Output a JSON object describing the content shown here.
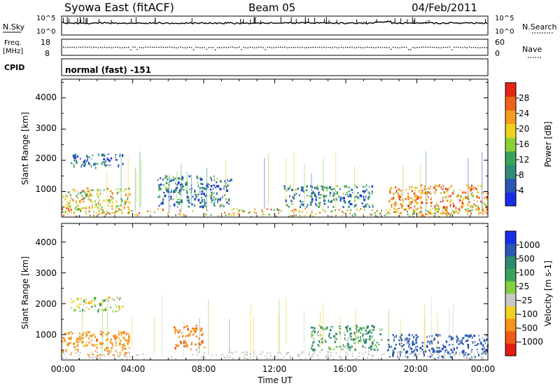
{
  "header": {
    "station": "Syowa East (fitACF)",
    "beam": "Beam 05",
    "date": "04/Feb/2011"
  },
  "top_panels": {
    "nsky_label": "N.Sky",
    "nsky_top_tick": "10^5",
    "nsky_bottom_tick": "10^0",
    "nsearch_label": "N.Search",
    "nsearch_top_tick": "10^5",
    "nsearch_bottom_tick": "10^0",
    "freq_label_1": "Freq.",
    "freq_label_2": "[MHz]",
    "freq_top_tick": "18",
    "freq_bottom_tick": "8",
    "nave_label": "Nave",
    "nave_top_tick": "60",
    "nave_bottom_tick": "0",
    "cpid_label": "CPID",
    "cpid_value": "normal (fast) -151"
  },
  "axes": {
    "ylabel": "Slant Range [km]",
    "xlabel": "Time UT",
    "y_ticks": [
      "1000",
      "2000",
      "3000",
      "4000"
    ],
    "x_ticks": [
      "00:00",
      "04:00",
      "08:00",
      "12:00",
      "16:00",
      "20:00",
      "00:00"
    ]
  },
  "power_scale": {
    "label": "Power [dB]",
    "ticks": [
      "4",
      "8",
      "12",
      "16",
      "20",
      "24",
      "28"
    ],
    "colors": [
      "#1a2ee8",
      "#2a56b4",
      "#2f8a7a",
      "#3aa35a",
      "#8ccf35",
      "#f0d020",
      "#f59a1c",
      "#f0621a",
      "#e32416"
    ]
  },
  "velocity_scale": {
    "label": "Velocity [m s-1]",
    "ticks": [
      "1000",
      "500",
      "100",
      "25",
      "-25",
      "-100",
      "-500",
      "-1000"
    ],
    "colors": [
      "#1a2ee8",
      "#2a58b2",
      "#2f8a6e",
      "#3aa35a",
      "#82d040",
      "#c8c8c8",
      "#f0d020",
      "#f5951c",
      "#f05a18",
      "#e31c12"
    ]
  },
  "chart_data": [
    {
      "type": "heatmap",
      "title": "Power",
      "xlabel": "Time UT",
      "ylabel": "Slant Range [km]",
      "xlim": [
        0,
        24
      ],
      "ylim": [
        180,
        4600
      ],
      "colorbar_range": [
        0,
        30
      ],
      "regions": [
        {
          "t_start": 0.0,
          "t_end": 3.8,
          "range_start": 300,
          "range_end": 1100,
          "level": 18
        },
        {
          "t_start": 0.5,
          "t_end": 3.5,
          "range_start": 1750,
          "range_end": 2200,
          "level": 6
        },
        {
          "t_start": 5.3,
          "t_end": 9.5,
          "range_start": 500,
          "range_end": 1500,
          "level": 8
        },
        {
          "t_start": 12.5,
          "t_end": 17.5,
          "range_start": 500,
          "range_end": 1200,
          "level": 8
        },
        {
          "t_start": 18.3,
          "t_end": 24.0,
          "range_start": 250,
          "range_end": 1200,
          "level": 22
        }
      ]
    },
    {
      "type": "heatmap",
      "title": "Velocity",
      "xlabel": "Time UT",
      "ylabel": "Slant Range [km]",
      "xlim": [
        0,
        24
      ],
      "ylim": [
        180,
        4600
      ],
      "colorbar_range": [
        -1000,
        1000
      ],
      "regions": [
        {
          "t_start": 0.0,
          "t_end": 3.8,
          "range_start": 300,
          "range_end": 1100,
          "level": -200
        },
        {
          "t_start": 0.5,
          "t_end": 3.5,
          "range_start": 1750,
          "range_end": 2200,
          "level": 0
        },
        {
          "t_start": 6.3,
          "t_end": 8.0,
          "range_start": 500,
          "range_end": 1300,
          "level": -300
        },
        {
          "t_start": 14.0,
          "t_end": 18.0,
          "range_start": 500,
          "range_end": 1300,
          "level": 120
        },
        {
          "t_start": 18.3,
          "t_end": 24.0,
          "range_start": 250,
          "range_end": 1000,
          "level": 500
        }
      ]
    }
  ]
}
